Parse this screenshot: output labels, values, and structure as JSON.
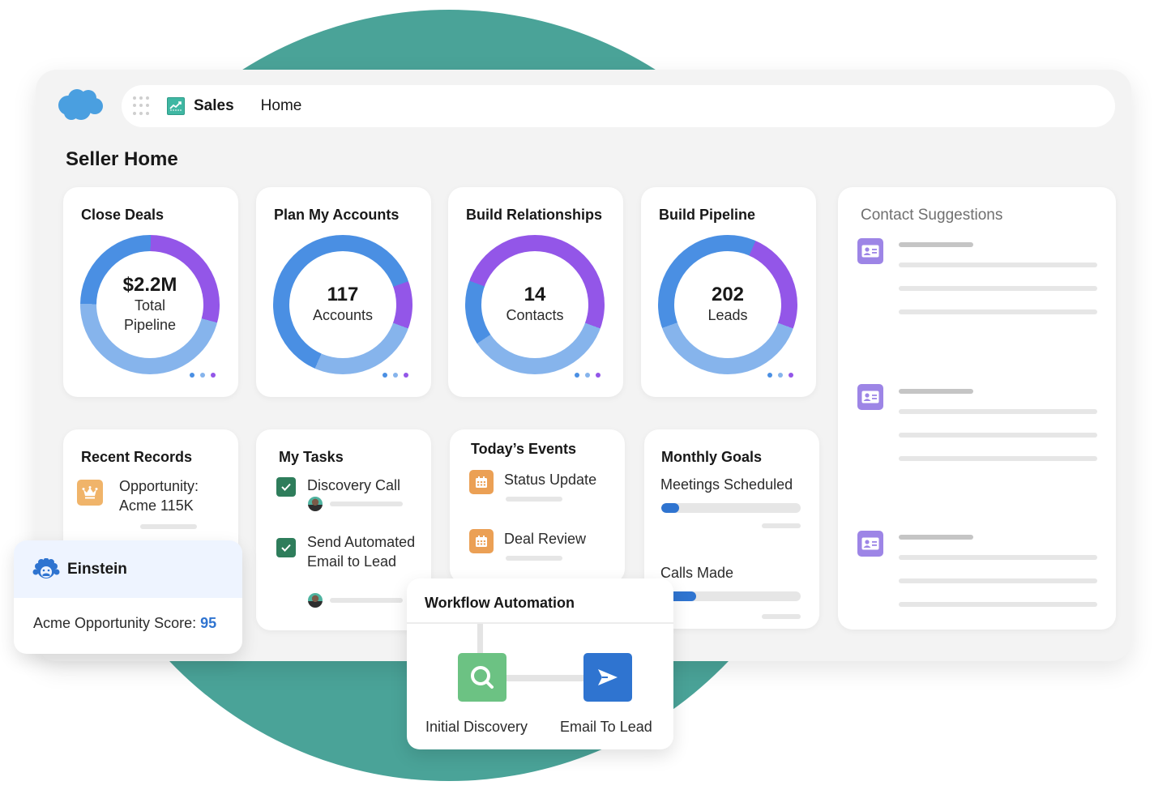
{
  "colors": {
    "teal_bg": "#4aa398",
    "brand_blue": "#4a9fe0",
    "donut_dark_blue": "#4a8fe3",
    "donut_light_blue": "#86b4ec",
    "donut_purple": "#9356e8",
    "accent_blue": "#2f74d0",
    "task_green": "#2e7d5b",
    "event_orange": "#eba055",
    "record_orange": "#f0b46a",
    "contact_purple": "#9d85e6",
    "wf_green": "#6cc283",
    "wf_blue": "#2f74d0"
  },
  "header": {
    "logo": "salesforce-cloud-logo",
    "app_launcher_icon": "app-launcher-grid-icon",
    "app_icon": "sales-chart-icon",
    "app_name": "Sales",
    "nav_item": "Home"
  },
  "page": {
    "title": "Seller Home"
  },
  "summary_cards": [
    {
      "title": "Close Deals",
      "value": "$2.2M",
      "label": "Total Pipeline"
    },
    {
      "title": "Plan My Accounts",
      "value": "117",
      "label": "Accounts"
    },
    {
      "title": "Build Relationships",
      "value": "14",
      "label": "Contacts"
    },
    {
      "title": "Build Pipeline",
      "value": "202",
      "label": "Leads"
    }
  ],
  "chart_data": [
    {
      "type": "pie",
      "title": "Close Deals",
      "center_value": "$2.2M",
      "center_label": "Total Pipeline",
      "start_angle_deg": 105,
      "series": [
        {
          "name": "light-blue segment",
          "color": "#86b4ec",
          "value": 46
        },
        {
          "name": "dark-blue segment",
          "color": "#4a8fe3",
          "value": 25
        },
        {
          "name": "purple segment",
          "color": "#9356e8",
          "value": 29
        }
      ]
    },
    {
      "type": "pie",
      "title": "Plan My Accounts",
      "center_value": "117",
      "center_label": "Accounts",
      "start_angle_deg": 110,
      "series": [
        {
          "name": "light-blue segment",
          "color": "#86b4ec",
          "value": 26
        },
        {
          "name": "dark-blue segment",
          "color": "#4a8fe3",
          "value": 63
        },
        {
          "name": "purple segment",
          "color": "#9356e8",
          "value": 11
        }
      ]
    },
    {
      "type": "pie",
      "title": "Build Relationships",
      "center_value": "14",
      "center_label": "Contacts",
      "start_angle_deg": 110,
      "series": [
        {
          "name": "light-blue segment",
          "color": "#86b4ec",
          "value": 35
        },
        {
          "name": "dark-blue segment",
          "color": "#4a8fe3",
          "value": 15
        },
        {
          "name": "purple segment",
          "color": "#9356e8",
          "value": 50
        }
      ]
    },
    {
      "type": "pie",
      "title": "Build Pipeline",
      "center_value": "202",
      "center_label": "Leads",
      "start_angle_deg": 110,
      "series": [
        {
          "name": "light-blue segment",
          "color": "#86b4ec",
          "value": 39
        },
        {
          "name": "dark-blue segment",
          "color": "#4a8fe3",
          "value": 37
        },
        {
          "name": "purple segment",
          "color": "#9356e8",
          "value": 24
        }
      ]
    }
  ],
  "contact_suggestions": {
    "title": "Contact Suggestions",
    "items": [
      {
        "icon": "contact-card-icon"
      },
      {
        "icon": "contact-card-icon"
      },
      {
        "icon": "contact-card-icon"
      }
    ]
  },
  "recent_records": {
    "title": "Recent Records",
    "items": [
      {
        "icon": "opportunity-crown-icon",
        "text": "Opportunity: Acme 115K"
      }
    ]
  },
  "my_tasks": {
    "title": "My Tasks",
    "items": [
      {
        "label": "Discovery Call",
        "checked": true
      },
      {
        "label": "Send Automated Email to Lead",
        "checked": true
      }
    ]
  },
  "todays_events": {
    "title": "Today’s Events",
    "items": [
      {
        "icon": "calendar-icon",
        "label": "Status Update"
      },
      {
        "icon": "calendar-icon",
        "label": "Deal Review"
      }
    ]
  },
  "monthly_goals": {
    "title": "Monthly Goals",
    "items": [
      {
        "label": "Meetings Scheduled",
        "progress_pct": 13
      },
      {
        "label": "Calls Made",
        "progress_pct": 25
      }
    ]
  },
  "einstein": {
    "title": "Einstein",
    "score_label": "Acme Opportunity Score:",
    "score_value": "95"
  },
  "workflow": {
    "title": "Workflow Automation",
    "steps": [
      {
        "icon": "search-icon",
        "label": "Initial Discovery"
      },
      {
        "icon": "send-icon",
        "label": "Email To Lead"
      }
    ]
  }
}
